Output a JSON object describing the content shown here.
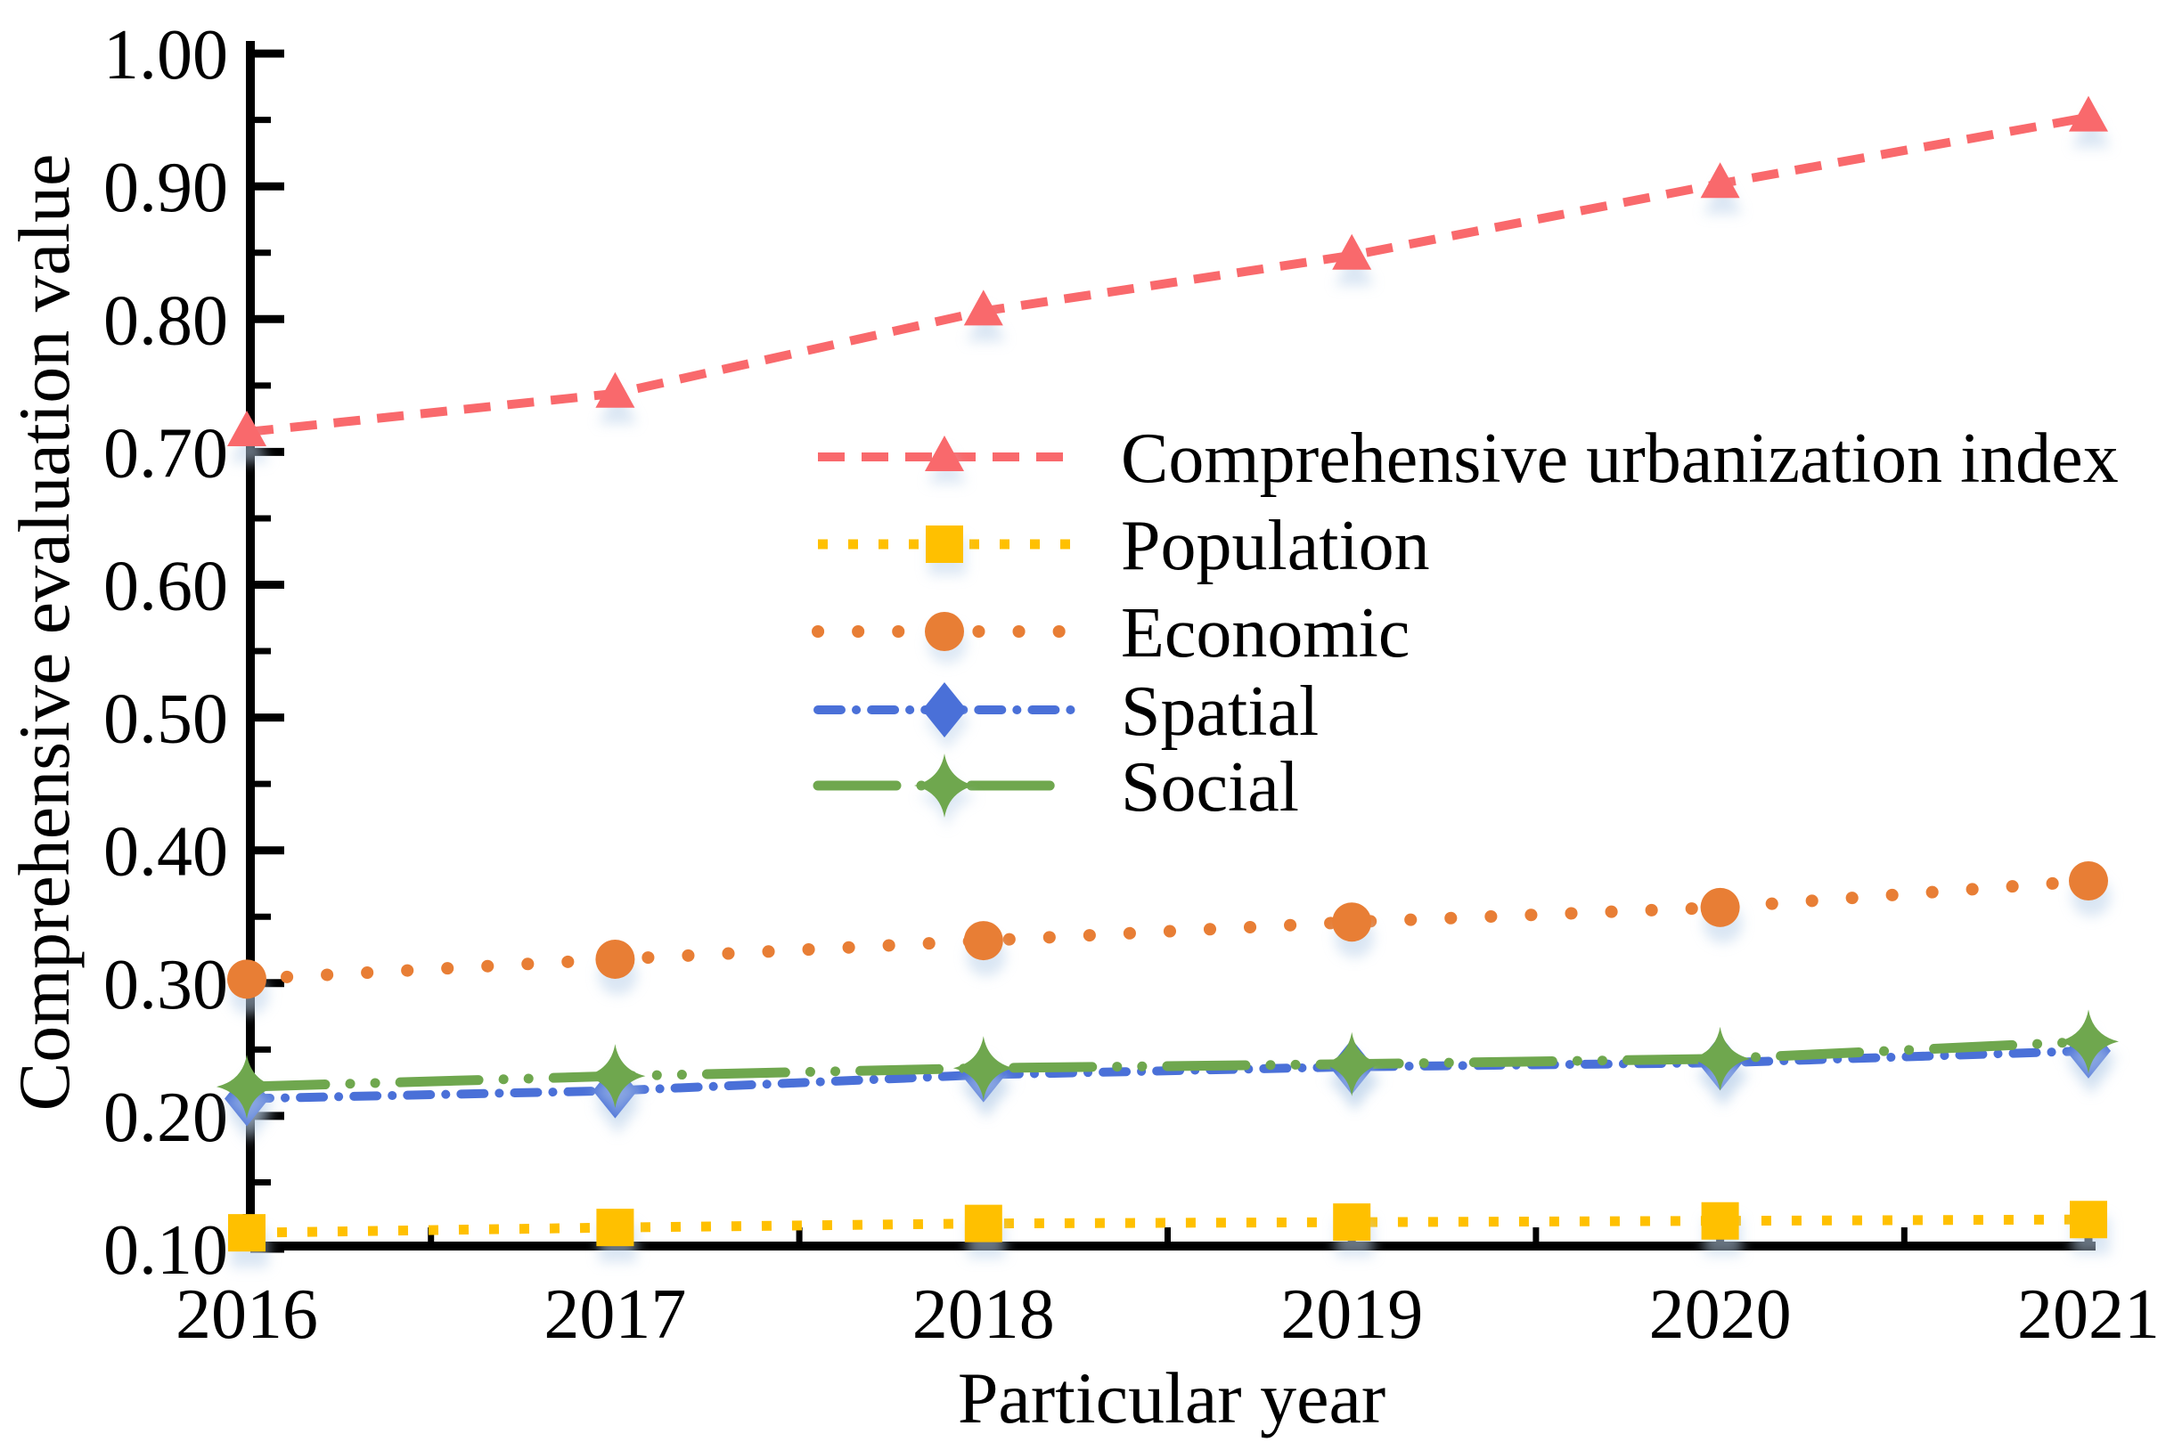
{
  "chart_data": {
    "type": "line",
    "title": "",
    "xlabel": "Particular year",
    "ylabel": "Comprehensive evaluation value",
    "categories": [
      2016,
      2017,
      2018,
      2019,
      2020,
      2021
    ],
    "x_tick_labels": [
      "2016",
      "2017",
      "2018",
      "2019",
      "2020",
      "2021"
    ],
    "y_ticks": [
      0.1,
      0.2,
      0.3,
      0.4,
      0.5,
      0.6,
      0.7,
      0.8,
      0.9,
      1.0
    ],
    "y_tick_labels": [
      "0.10",
      "0.20",
      "0.30",
      "0.40",
      "0.50",
      "0.60",
      "0.70",
      "0.80",
      "0.90",
      "1.00"
    ],
    "y_minor_ticks": [
      0.15,
      0.25,
      0.35,
      0.45,
      0.55,
      0.65,
      0.75,
      0.85,
      0.95
    ],
    "ylim": [
      0.1,
      1.0
    ],
    "xlim": [
      2016,
      2021
    ],
    "grid": false,
    "legend_position": "center-right",
    "axis_color": "#000000",
    "background_color": "#ffffff",
    "marker_shadow_color": "#BCD2EA",
    "series": [
      {
        "name": "Comprehensive urbanization index",
        "color": "#F9696C",
        "line": "dashed",
        "marker": "triangle",
        "values": [
          0.715,
          0.744,
          0.806,
          0.848,
          0.902,
          0.952
        ]
      },
      {
        "name": "Population",
        "color": "#FFC000",
        "line": "square-dotted",
        "marker": "square",
        "values": [
          0.112,
          0.116,
          0.119,
          0.12,
          0.121,
          0.122
        ]
      },
      {
        "name": "Economic",
        "color": "#E87E35",
        "line": "dotted",
        "marker": "circle",
        "values": [
          0.303,
          0.318,
          0.332,
          0.346,
          0.357,
          0.377
        ]
      },
      {
        "name": "Spatial",
        "color": "#4A70D8",
        "line": "dash-dot",
        "marker": "diamond",
        "values": [
          0.213,
          0.219,
          0.231,
          0.237,
          0.24,
          0.249
        ]
      },
      {
        "name": "Social",
        "color": "#6FA74E",
        "line": "long-dash-dot-dot",
        "marker": "four-point-star",
        "values": [
          0.222,
          0.23,
          0.236,
          0.239,
          0.243,
          0.256
        ]
      }
    ]
  }
}
